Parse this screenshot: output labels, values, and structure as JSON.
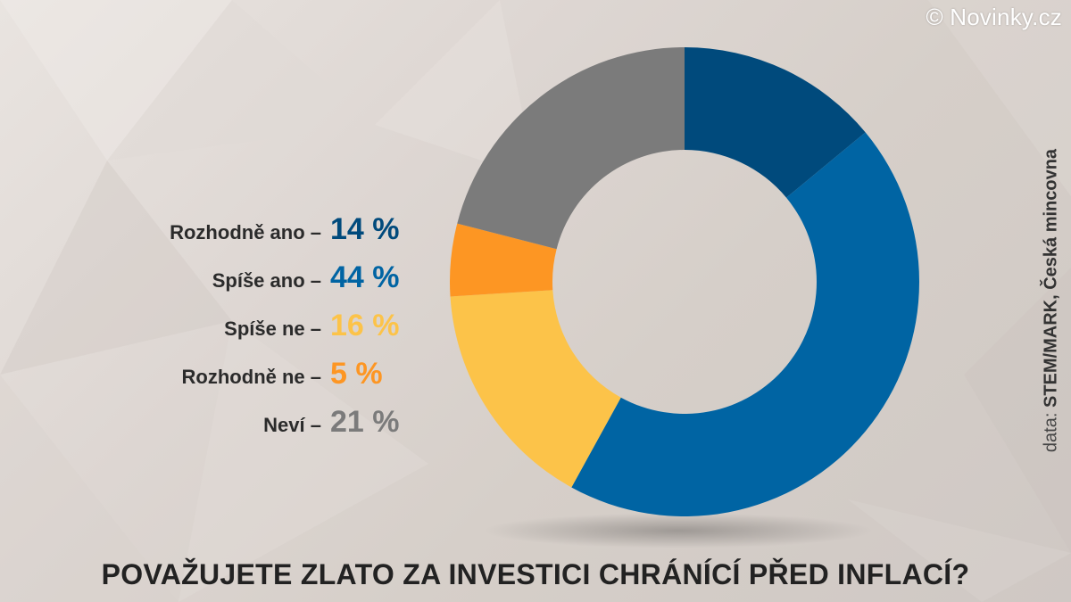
{
  "copyright": "© Novinky.cz",
  "source": {
    "prefix": "data:",
    "name": "STEM/MARK, Česká mincovna"
  },
  "chart_data": {
    "type": "pie",
    "title": "POVAŽUJETE ZLATO ZA INVESTICI CHRÁNÍCÍ PŘED INFLACÍ?",
    "legend_placement": "left",
    "slices": [
      {
        "label": "Rozhodně ano –",
        "value": 14,
        "value_text": "14 %",
        "color": "#004a7c",
        "label_color": "#004a7c"
      },
      {
        "label": "Spíše ano –",
        "value": 44,
        "value_text": "44 %",
        "color": "#0064a3",
        "label_color": "#0064a3"
      },
      {
        "label": "Spíše ne –",
        "value": 16,
        "value_text": "16 %",
        "color": "#fcc349",
        "label_color": "#fcc349"
      },
      {
        "label": "Rozhodně ne –",
        "value": 5,
        "value_text": "5 %",
        "color": "#fd9623",
        "label_color": "#fd9623"
      },
      {
        "label": "Neví –",
        "value": 21,
        "value_text": "21 %",
        "color": "#7b7b7b",
        "label_color": "#7b7b7b"
      }
    ]
  }
}
